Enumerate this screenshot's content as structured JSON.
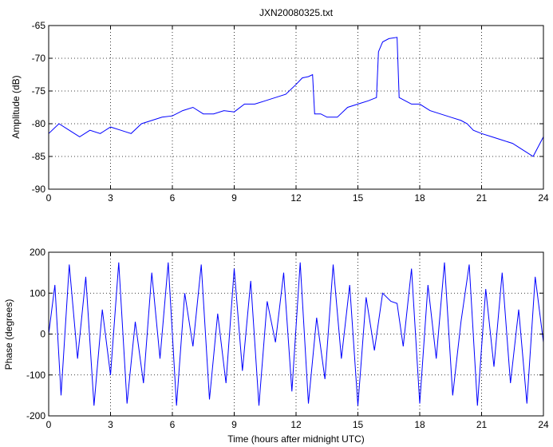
{
  "chart_data": [
    {
      "type": "line",
      "title": "JXN20080325.txt",
      "xlabel": "",
      "ylabel": "Amplitude (dB)",
      "xlim": [
        0,
        24
      ],
      "ylim": [
        -90,
        -65
      ],
      "xticks": [
        "0",
        "3",
        "6",
        "9",
        "12",
        "15",
        "18",
        "21",
        "24"
      ],
      "yticks": [
        "-65",
        "-70",
        "-75",
        "-80",
        "-85",
        "-90"
      ],
      "grid": true,
      "line_color": "#0000ff",
      "series": [
        {
          "x": [
            0,
            0.5,
            1,
            1.5,
            2,
            2.5,
            3,
            3.5,
            4,
            4.5,
            5,
            5.5,
            6,
            6.5,
            7,
            7.5,
            8,
            8.5,
            9,
            9.5,
            10,
            10.5,
            11,
            11.5,
            12,
            12.3,
            12.6,
            12.8,
            12.9,
            13.2,
            13.5,
            14,
            14.5,
            15,
            15.5,
            15.9,
            16.0,
            16.2,
            16.5,
            16.9,
            17.0,
            17.3,
            17.6,
            18,
            18.5,
            19,
            19.5,
            20,
            20.3,
            20.6,
            21,
            21.5,
            22,
            22.5,
            23,
            23.5,
            24
          ],
          "y": [
            -81.5,
            -80,
            -81,
            -82,
            -81,
            -81.5,
            -80.5,
            -81,
            -81.5,
            -80,
            -79.5,
            -79,
            -78.8,
            -78,
            -77.5,
            -78.5,
            -78.5,
            -78,
            -78.2,
            -77,
            -77,
            -76.5,
            -76,
            -75.5,
            -74,
            -73,
            -72.8,
            -72.5,
            -78.5,
            -78.5,
            -79,
            -79,
            -77.5,
            -77,
            -76.5,
            -76,
            -69,
            -67.5,
            -67,
            -66.8,
            -76,
            -76.5,
            -77,
            -77,
            -78,
            -78.5,
            -79,
            -79.5,
            -80,
            -81,
            -81.5,
            -82,
            -82.5,
            -83,
            -84,
            -85,
            -82
          ]
        }
      ]
    },
    {
      "type": "line",
      "title": "",
      "xlabel": "Time (hours after midnight UTC)",
      "ylabel": "Phase (degrees)",
      "xlim": [
        0,
        24
      ],
      "ylim": [
        -200,
        200
      ],
      "xticks": [
        "0",
        "3",
        "6",
        "9",
        "12",
        "15",
        "18",
        "21",
        "24"
      ],
      "yticks": [
        "200",
        "100",
        "0",
        "-100",
        "-200"
      ],
      "grid": true,
      "line_color": "#0000ff",
      "series": [
        {
          "x": [
            0,
            0.3,
            0.6,
            1,
            1.4,
            1.8,
            2.2,
            2.6,
            3,
            3.4,
            3.8,
            4.2,
            4.6,
            5,
            5.4,
            5.8,
            6.2,
            6.6,
            7,
            7.4,
            7.8,
            8.2,
            8.6,
            9,
            9.4,
            9.8,
            10.2,
            10.6,
            11,
            11.4,
            11.8,
            12.2,
            12.6,
            13,
            13.4,
            13.8,
            14.2,
            14.6,
            15,
            15.4,
            15.8,
            16.2,
            16.6,
            16.9,
            17.2,
            17.6,
            18,
            18.4,
            18.8,
            19.2,
            19.6,
            20,
            20.4,
            20.8,
            21.2,
            21.6,
            22,
            22.4,
            22.8,
            23.2,
            23.6,
            24
          ],
          "y": [
            0,
            120,
            -150,
            170,
            -60,
            140,
            -175,
            60,
            -100,
            175,
            -170,
            30,
            -120,
            150,
            -60,
            175,
            -175,
            100,
            -30,
            170,
            -160,
            50,
            -120,
            160,
            -90,
            130,
            -175,
            80,
            -20,
            150,
            -140,
            175,
            -170,
            40,
            -110,
            170,
            -60,
            120,
            -175,
            90,
            -40,
            100,
            80,
            75,
            -30,
            160,
            -170,
            120,
            -60,
            175,
            -150,
            30,
            170,
            -175,
            110,
            -80,
            150,
            -120,
            60,
            -170,
            140,
            -20
          ]
        }
      ]
    }
  ]
}
